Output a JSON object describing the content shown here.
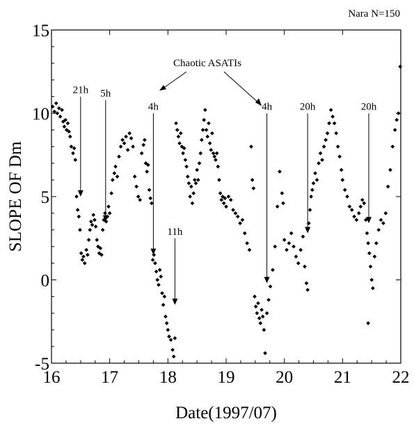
{
  "chart_data": {
    "type": "scatter",
    "title": "",
    "corner_note": "Nara N=150",
    "xlabel": "Date(1997/07)",
    "ylabel": "SLOPE OF Dm",
    "xlim": [
      16,
      22
    ],
    "ylim": [
      -5,
      15
    ],
    "x_ticks": [
      "16",
      "17",
      "18",
      "19",
      "20",
      "21",
      "22"
    ],
    "y_ticks": [
      "-5",
      "0",
      "5",
      "10",
      "15"
    ],
    "grid": false,
    "legend": "none",
    "marker_color": "#000000",
    "series": [
      {
        "points": [
          [
            16.02,
            10.4
          ],
          [
            16.05,
            10.1
          ],
          [
            16.08,
            10.6
          ],
          [
            16.1,
            10.0
          ],
          [
            16.13,
            10.3
          ],
          [
            16.15,
            9.8
          ],
          [
            16.18,
            10.2
          ],
          [
            16.2,
            9.5
          ],
          [
            16.22,
            9.2
          ],
          [
            16.24,
            9.6
          ],
          [
            16.26,
            9.0
          ],
          [
            16.28,
            9.4
          ],
          [
            16.3,
            8.9
          ],
          [
            16.32,
            8.6
          ],
          [
            16.34,
            8.0
          ],
          [
            16.37,
            7.6
          ],
          [
            16.39,
            7.9
          ],
          [
            16.41,
            7.2
          ],
          [
            16.43,
            5.0
          ],
          [
            16.45,
            4.2
          ],
          [
            16.47,
            3.8
          ],
          [
            16.49,
            3.0
          ],
          [
            16.51,
            1.6
          ],
          [
            16.53,
            1.2
          ],
          [
            16.55,
            1.4
          ],
          [
            16.57,
            1.0
          ],
          [
            16.6,
            1.8
          ],
          [
            16.62,
            1.5
          ],
          [
            16.64,
            2.4
          ],
          [
            16.66,
            3.0
          ],
          [
            16.68,
            3.5
          ],
          [
            16.7,
            3.3
          ],
          [
            16.72,
            3.9
          ],
          [
            16.74,
            3.6
          ],
          [
            16.76,
            3.2
          ],
          [
            16.78,
            2.4
          ],
          [
            16.8,
            2.0
          ],
          [
            16.82,
            1.6
          ],
          [
            16.84,
            1.9
          ],
          [
            16.86,
            1.5
          ],
          [
            16.88,
            3.0
          ],
          [
            16.9,
            3.6
          ],
          [
            16.92,
            4.0
          ],
          [
            16.94,
            3.5
          ],
          [
            16.96,
            3.8
          ],
          [
            16.98,
            4.4
          ],
          [
            17.0,
            4.0
          ],
          [
            17.03,
            5.2
          ],
          [
            17.05,
            6.0
          ],
          [
            17.08,
            6.4
          ],
          [
            17.1,
            6.8
          ],
          [
            17.13,
            6.2
          ],
          [
            17.16,
            7.4
          ],
          [
            17.19,
            8.0
          ],
          [
            17.22,
            8.4
          ],
          [
            17.25,
            8.2
          ],
          [
            17.28,
            8.6
          ],
          [
            17.31,
            7.8
          ],
          [
            17.34,
            8.8
          ],
          [
            17.37,
            8.5
          ],
          [
            17.4,
            8.0
          ],
          [
            17.43,
            6.2
          ],
          [
            17.46,
            5.6
          ],
          [
            17.49,
            5.0
          ],
          [
            17.52,
            4.8
          ],
          [
            17.55,
            7.6
          ],
          [
            17.58,
            8.1
          ],
          [
            17.6,
            8.4
          ],
          [
            17.62,
            7.0
          ],
          [
            17.64,
            6.5
          ],
          [
            17.66,
            6.9
          ],
          [
            17.68,
            5.4
          ],
          [
            17.7,
            4.9
          ],
          [
            17.72,
            4.6
          ],
          [
            17.74,
            1.2
          ],
          [
            17.76,
            1.5
          ],
          [
            17.78,
            1.0
          ],
          [
            17.8,
            0.5
          ],
          [
            17.82,
            0.0
          ],
          [
            17.84,
            -0.3
          ],
          [
            17.86,
            0.6
          ],
          [
            17.88,
            0.2
          ],
          [
            17.9,
            -0.8
          ],
          [
            17.92,
            -1.5
          ],
          [
            17.94,
            -1.0
          ],
          [
            17.96,
            -2.2
          ],
          [
            17.98,
            -2.6
          ],
          [
            18.0,
            -3.0
          ],
          [
            18.02,
            -3.4
          ],
          [
            18.05,
            -3.6
          ],
          [
            18.08,
            -4.2
          ],
          [
            18.1,
            -4.6
          ],
          [
            18.12,
            -3.5
          ],
          [
            18.14,
            9.4
          ],
          [
            18.16,
            9.0
          ],
          [
            18.18,
            8.6
          ],
          [
            18.2,
            8.2
          ],
          [
            18.22,
            8.8
          ],
          [
            18.24,
            8.0
          ],
          [
            18.26,
            7.6
          ],
          [
            18.28,
            7.9
          ],
          [
            18.3,
            7.2
          ],
          [
            18.32,
            6.8
          ],
          [
            18.34,
            6.2
          ],
          [
            18.36,
            5.8
          ],
          [
            18.38,
            5.0
          ],
          [
            18.4,
            5.6
          ],
          [
            18.42,
            4.6
          ],
          [
            18.44,
            5.2
          ],
          [
            18.46,
            6.0
          ],
          [
            18.48,
            5.8
          ],
          [
            18.5,
            6.6
          ],
          [
            18.52,
            6.0
          ],
          [
            18.54,
            7.0
          ],
          [
            18.56,
            7.6
          ],
          [
            18.58,
            8.4
          ],
          [
            18.6,
            9.0
          ],
          [
            18.62,
            9.6
          ],
          [
            18.64,
            10.2
          ],
          [
            18.66,
            9.0
          ],
          [
            18.68,
            8.6
          ],
          [
            18.7,
            9.4
          ],
          [
            18.72,
            8.2
          ],
          [
            18.74,
            7.8
          ],
          [
            18.76,
            8.8
          ],
          [
            18.78,
            7.6
          ],
          [
            18.8,
            7.4
          ],
          [
            18.82,
            7.2
          ],
          [
            18.84,
            7.6
          ],
          [
            18.86,
            6.8
          ],
          [
            18.88,
            6.0
          ],
          [
            18.9,
            5.2
          ],
          [
            18.92,
            4.8
          ],
          [
            18.94,
            5.0
          ],
          [
            18.96,
            4.6
          ],
          [
            18.98,
            4.9
          ],
          [
            19.0,
            4.4
          ],
          [
            19.04,
            5.0
          ],
          [
            19.08,
            4.8
          ],
          [
            19.12,
            4.2
          ],
          [
            19.16,
            4.0
          ],
          [
            19.2,
            3.8
          ],
          [
            19.24,
            3.4
          ],
          [
            19.28,
            3.6
          ],
          [
            19.32,
            2.8
          ],
          [
            19.36,
            2.2
          ],
          [
            19.4,
            1.8
          ],
          [
            19.43,
            8.0
          ],
          [
            19.45,
            6.0
          ],
          [
            19.47,
            5.5
          ],
          [
            19.49,
            -1.0
          ],
          [
            19.51,
            -1.6
          ],
          [
            19.53,
            -2.0
          ],
          [
            19.55,
            -1.4
          ],
          [
            19.57,
            -2.3
          ],
          [
            19.59,
            -2.6
          ],
          [
            19.61,
            -1.8
          ],
          [
            19.63,
            -2.2
          ],
          [
            19.65,
            -3.0
          ],
          [
            19.67,
            -4.4
          ],
          [
            19.7,
            -2.0
          ],
          [
            19.73,
            -1.2
          ],
          [
            19.76,
            -0.4
          ],
          [
            19.8,
            0.6
          ],
          [
            19.84,
            2.0
          ],
          [
            19.88,
            4.4
          ],
          [
            19.92,
            6.5
          ],
          [
            19.96,
            5.2
          ],
          [
            19.98,
            4.6
          ],
          [
            20.0,
            2.4
          ],
          [
            20.04,
            1.8
          ],
          [
            20.08,
            2.2
          ],
          [
            20.12,
            2.8
          ],
          [
            20.16,
            2.0
          ],
          [
            20.2,
            1.4
          ],
          [
            20.24,
            1.0
          ],
          [
            20.28,
            1.8
          ],
          [
            20.32,
            2.6
          ],
          [
            20.35,
            0.8
          ],
          [
            20.38,
            -0.2
          ],
          [
            20.4,
            -0.6
          ],
          [
            20.42,
            3.4
          ],
          [
            20.44,
            4.2
          ],
          [
            20.46,
            5.0
          ],
          [
            20.48,
            5.4
          ],
          [
            20.5,
            5.8
          ],
          [
            20.53,
            6.4
          ],
          [
            20.56,
            6.0
          ],
          [
            20.59,
            7.0
          ],
          [
            20.62,
            7.6
          ],
          [
            20.65,
            7.2
          ],
          [
            20.68,
            8.0
          ],
          [
            20.71,
            8.4
          ],
          [
            20.74,
            8.8
          ],
          [
            20.77,
            9.4
          ],
          [
            20.8,
            10.2
          ],
          [
            20.83,
            9.8
          ],
          [
            20.86,
            9.4
          ],
          [
            20.89,
            8.8
          ],
          [
            20.92,
            8.0
          ],
          [
            20.95,
            7.4
          ],
          [
            20.98,
            6.6
          ],
          [
            21.0,
            6.0
          ],
          [
            21.04,
            5.4
          ],
          [
            21.08,
            5.0
          ],
          [
            21.12,
            4.4
          ],
          [
            21.16,
            4.2
          ],
          [
            21.2,
            3.8
          ],
          [
            21.24,
            3.6
          ],
          [
            21.28,
            4.0
          ],
          [
            21.31,
            4.4
          ],
          [
            21.34,
            4.8
          ],
          [
            21.37,
            4.6
          ],
          [
            21.4,
            3.6
          ],
          [
            21.42,
            2.8
          ],
          [
            21.44,
            2.2
          ],
          [
            21.46,
            1.6
          ],
          [
            21.48,
            0.8
          ],
          [
            21.5,
            0.0
          ],
          [
            21.52,
            -0.5
          ],
          [
            21.44,
            -2.6
          ],
          [
            21.55,
            1.4
          ],
          [
            21.58,
            2.2
          ],
          [
            21.62,
            3.0
          ],
          [
            21.66,
            3.6
          ],
          [
            21.7,
            3.4
          ],
          [
            21.74,
            4.0
          ],
          [
            21.78,
            5.6
          ],
          [
            21.82,
            6.6
          ],
          [
            21.86,
            8.0
          ],
          [
            21.9,
            9.0
          ],
          [
            21.93,
            9.6
          ],
          [
            21.96,
            10.0
          ],
          [
            21.99,
            12.8
          ]
        ]
      }
    ],
    "annotations": [
      {
        "label": "Chaotic ASATIs"
      },
      {
        "label": "21h",
        "x": 16.5,
        "y_from": 11.0,
        "y_to": 5.0
      },
      {
        "label": "5h",
        "x": 16.93,
        "y_from": 10.8,
        "y_to": 3.5
      },
      {
        "label": "4h",
        "x": 17.75,
        "y_from": 10.0,
        "y_to": 1.5
      },
      {
        "label": "11h",
        "x": 18.12,
        "y_from": 2.5,
        "y_to": -1.5
      },
      {
        "label": "4h",
        "x": 19.7,
        "y_from": 10.0,
        "y_to": -0.2
      },
      {
        "label": "20h",
        "x": 20.4,
        "y_from": 10.0,
        "y_to": 2.8
      },
      {
        "label": "20h",
        "x": 21.45,
        "y_from": 10.0,
        "y_to": 3.4
      }
    ]
  }
}
